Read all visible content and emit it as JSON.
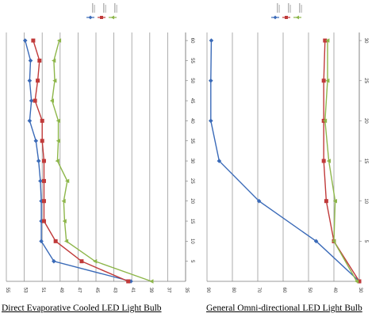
{
  "chart_data": [
    {
      "type": "line",
      "title": "",
      "xlabel": "",
      "ylabel": "",
      "x": [
        0,
        5,
        10,
        15,
        20,
        25,
        30,
        35,
        40,
        45,
        50,
        55,
        60
      ],
      "xlim": [
        0,
        62
      ],
      "xticks": [
        "5",
        "10",
        "15",
        "20",
        "25",
        "30",
        "35",
        "40",
        "45",
        "50",
        "55",
        "60"
      ],
      "ylim": [
        35,
        55
      ],
      "yticks": [
        "55",
        "53",
        "51",
        "49",
        "47",
        "45",
        "43",
        "41",
        "39",
        "37",
        "35"
      ],
      "grid": true,
      "legend_position": "top",
      "series": [
        {
          "name": "",
          "color": "#3a6ab8",
          "marker": "diamond",
          "values": [
            41.1,
            49.7,
            51.1,
            51.1,
            51.1,
            51.2,
            51.4,
            51.7,
            52.4,
            52.2,
            52.4,
            52.3,
            52.9
          ]
        },
        {
          "name": "",
          "color": "#c03a3a",
          "marker": "square",
          "values": [
            41.4,
            46.6,
            49.5,
            50.8,
            50.8,
            50.8,
            50.8,
            51.0,
            51.0,
            51.8,
            51.5,
            51.3,
            52.0
          ]
        },
        {
          "name": "",
          "color": "#8db64a",
          "marker": "triangle",
          "values": [
            38.8,
            45.1,
            48.3,
            48.5,
            48.6,
            48.2,
            49.3,
            49.2,
            49.2,
            49.9,
            49.6,
            49.7,
            49.1
          ]
        }
      ]
    },
    {
      "type": "line",
      "title": "",
      "xlabel": "",
      "ylabel": "",
      "x": [
        0,
        5,
        10,
        15,
        20,
        25,
        30
      ],
      "xlim": [
        0,
        31
      ],
      "xticks": [
        "5",
        "10",
        "15",
        "20",
        "25",
        "30"
      ],
      "ylim": [
        30,
        90
      ],
      "yticks": [
        "90",
        "80",
        "70",
        "60",
        "50",
        "40",
        "30"
      ],
      "grid": true,
      "legend_position": "top",
      "series": [
        {
          "name": "",
          "color": "#3a6ab8",
          "marker": "diamond",
          "values": [
            30,
            47,
            69.5,
            85.2,
            88.5,
            88.5,
            88.3
          ]
        },
        {
          "name": "",
          "color": "#c03a3a",
          "marker": "square",
          "values": [
            30,
            40,
            43,
            44,
            44,
            44,
            43.5
          ]
        },
        {
          "name": "",
          "color": "#8db64a",
          "marker": "triangle",
          "values": [
            31,
            40,
            39.5,
            42,
            43.5,
            42.5,
            42.5
          ]
        }
      ]
    }
  ],
  "captions": {
    "left": "Direct  Evaporative Cooled LED Light Bulb",
    "right": "General  Omni-directional  LED  Light  Bulb"
  }
}
